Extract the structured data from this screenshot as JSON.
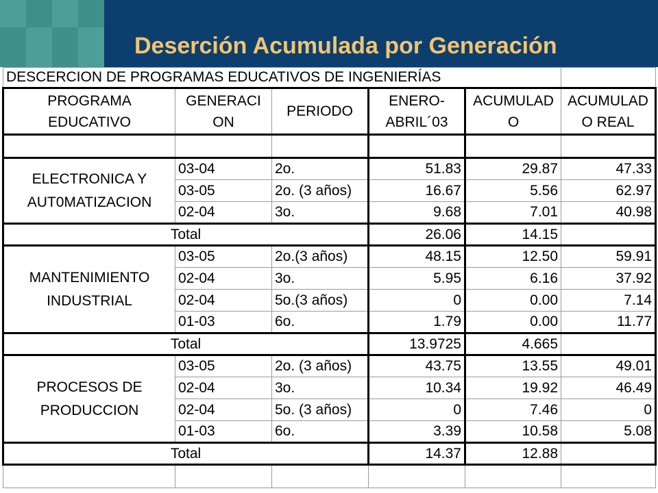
{
  "slide_title": "Deserción Acumulada por Generación",
  "colors": {
    "header_navy": "#0d3f6e",
    "header_teal": "#3f8f8a",
    "title_gold": "#f3c471"
  },
  "table": {
    "caption": "DESCERCION DE PROGRAMAS EDUCATIVOS DE INGENIERÍAS",
    "headers": {
      "programa": [
        "PROGRAMA",
        "EDUCATIVO"
      ],
      "generacion": [
        "GENERACI",
        "ON"
      ],
      "periodo": "PERIODO",
      "enero_abril": [
        "ENERO-",
        "ABRIL´03"
      ],
      "acumulado": [
        "ACUMULAD",
        "O"
      ],
      "acumulado_real": [
        "ACUMULAD",
        "O REAL"
      ]
    },
    "groups": [
      {
        "program": [
          "ELECTRONICA Y",
          "AUT0MATIZACION"
        ],
        "rows": [
          {
            "generacion": "03-04",
            "periodo": "2o.",
            "enero_abril": "51.83",
            "acumulado": "29.87",
            "acumulado_real": "47.33"
          },
          {
            "generacion": "03-05",
            "periodo": "2o. (3 años)",
            "enero_abril": "16.67",
            "acumulado": "5.56",
            "acumulado_real": "62.97"
          },
          {
            "generacion": "02-04",
            "periodo": "3o.",
            "enero_abril": "9.68",
            "acumulado": "7.01",
            "acumulado_real": "40.98"
          }
        ],
        "total": {
          "label": "Total",
          "enero_abril": "26.06",
          "acumulado": "14.15"
        }
      },
      {
        "program": [
          "MANTENIMIENTO",
          "INDUSTRIAL"
        ],
        "rows": [
          {
            "generacion": "03-05",
            "periodo": "2o.(3 años)",
            "enero_abril": "48.15",
            "acumulado": "12.50",
            "acumulado_real": "59.91"
          },
          {
            "generacion": "02-04",
            "periodo": "3o.",
            "enero_abril": "5.95",
            "acumulado": "6.16",
            "acumulado_real": "37.92"
          },
          {
            "generacion": "02-04",
            "periodo": "5o.(3 años)",
            "enero_abril": "0",
            "acumulado": "0.00",
            "acumulado_real": "7.14"
          },
          {
            "generacion": "01-03",
            "periodo": "6o.",
            "enero_abril": "1.79",
            "acumulado": "0.00",
            "acumulado_real": "11.77"
          }
        ],
        "total": {
          "label": "Total",
          "enero_abril": "13.9725",
          "acumulado": "4.665"
        }
      },
      {
        "program": [
          "PROCESOS DE",
          "PRODUCCION"
        ],
        "rows": [
          {
            "generacion": "03-05",
            "periodo": "2o. (3 años)",
            "enero_abril": "43.75",
            "acumulado": "13.55",
            "acumulado_real": "49.01"
          },
          {
            "generacion": "02-04",
            "periodo": "3o.",
            "enero_abril": "10.34",
            "acumulado": "19.92",
            "acumulado_real": "46.49"
          },
          {
            "generacion": "02-04",
            "periodo": "5o. (3 años)",
            "enero_abril": "0",
            "acumulado": "7.46",
            "acumulado_real": "0"
          },
          {
            "generacion": "01-03",
            "periodo": "6o.",
            "enero_abril": "3.39",
            "acumulado": "10.58",
            "acumulado_real": "5.08"
          }
        ],
        "total": {
          "label": "Total",
          "enero_abril": "14.37",
          "acumulado": "12.88"
        }
      }
    ]
  }
}
